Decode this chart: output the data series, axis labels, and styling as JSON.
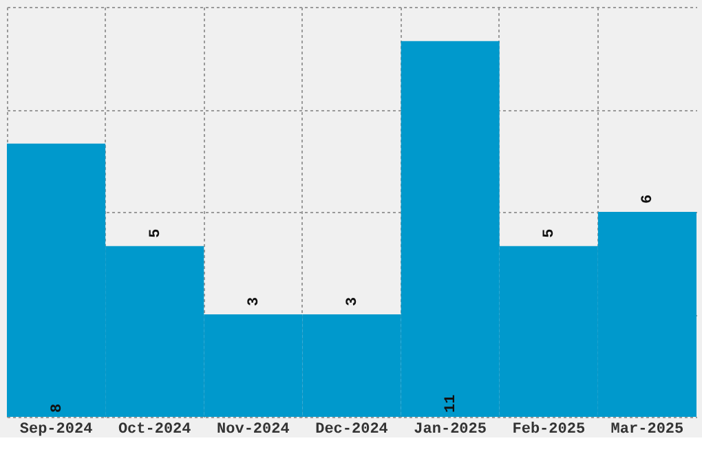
{
  "chart_data": {
    "type": "bar",
    "categories": [
      "Sep-2024",
      "Oct-2024",
      "Nov-2024",
      "Dec-2024",
      "Jan-2025",
      "Feb-2025",
      "Mar-2025"
    ],
    "values": [
      8,
      5,
      3,
      3,
      11,
      5,
      6
    ],
    "color": "#0099cc",
    "ylim": [
      0,
      12
    ],
    "yticks": [
      0,
      3,
      6,
      9,
      12
    ],
    "grid": true,
    "data_labels": true,
    "tick_labels": "x"
  }
}
